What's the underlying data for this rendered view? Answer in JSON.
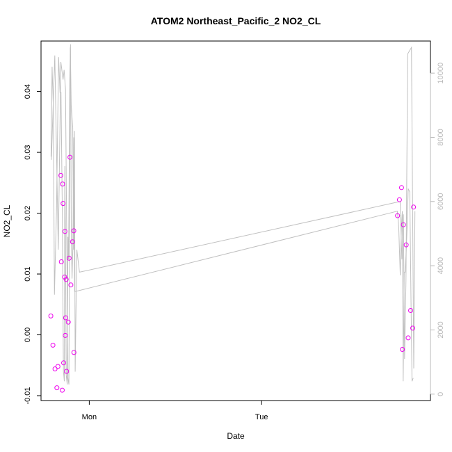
{
  "chart_data": {
    "type": "scatter",
    "title": "ATOM2 Northeast_Pacific_2 NO2_CL",
    "xlabel": "Date",
    "ylabel": "NO2_CL",
    "x_axis_type": "time",
    "x_ticks": [
      {
        "value": 1.0,
        "label": "Mon"
      },
      {
        "value": 2.0,
        "label": "Tue"
      }
    ],
    "y_ticks": [
      -0.01,
      0.0,
      0.01,
      0.02,
      0.03,
      0.04
    ],
    "y_tick_labels": [
      "-0.01",
      "0.00",
      "0.01",
      "0.02",
      "0.03",
      "0.04"
    ],
    "xlim": [
      0.72,
      2.98
    ],
    "ylim": [
      -0.0108,
      0.0483
    ],
    "y2_ticks": [
      0,
      2000,
      4000,
      6000,
      8000,
      10000
    ],
    "y2_tick_labels": [
      "0",
      "2000",
      "4000",
      "6000",
      "8000",
      "10000"
    ],
    "y2lim": [
      -200,
      11000
    ],
    "grid": false,
    "colors": {
      "points": "#ee00ee",
      "line": "#c0c0c0",
      "right_axis": "#b8b8b8"
    },
    "series": [
      {
        "kind": "points",
        "x": [
          0.777,
          0.789,
          0.801,
          0.812,
          0.818,
          0.835,
          0.838,
          0.843,
          0.845,
          0.848,
          0.851,
          0.857,
          0.859,
          0.861,
          0.863,
          0.866,
          0.868,
          0.878,
          0.883,
          0.888,
          0.893,
          0.903,
          0.911,
          0.91,
          2.789,
          2.8,
          2.812,
          2.817,
          2.823,
          2.839,
          2.851,
          2.865,
          2.877,
          2.882
        ],
        "y": [
          0.0031,
          -0.0017,
          -0.0056,
          -0.0087,
          -0.0052,
          0.0262,
          0.012,
          -0.0091,
          0.0248,
          0.0216,
          -0.0046,
          0.0095,
          0.017,
          -0.0001,
          0.0028,
          0.0091,
          -0.006,
          0.0021,
          0.0126,
          0.0292,
          0.0082,
          0.0153,
          -0.0029,
          0.0171,
          0.0196,
          0.0222,
          0.0242,
          -0.0024,
          0.0181,
          0.0148,
          -0.0005,
          0.004,
          0.0011,
          0.021
        ]
      },
      {
        "kind": "line",
        "axis": "right",
        "x": [
          0.78,
          0.8,
          0.82,
          0.835,
          0.848,
          0.854,
          0.862,
          0.876,
          0.882,
          0.89,
          0.895,
          0.904,
          0.909,
          0.914,
          0.918,
          0.928,
          0.943,
          2.804,
          2.814,
          2.823,
          2.83,
          2.838,
          2.848,
          2.87,
          2.883,
          2.89
        ],
        "y": [
          7300,
          10550,
          4500,
          10350,
          9800,
          10100,
          9500,
          500,
          300,
          10800,
          9000,
          8300,
          4500,
          8200,
          700,
          4500,
          3800,
          6000,
          4200,
          5600,
          1100,
          3500,
          10600,
          10800,
          800,
          5700
        ]
      },
      {
        "kind": "line",
        "axis": "right",
        "x": [
          0.778,
          0.784,
          0.791,
          0.798,
          0.81,
          0.822,
          0.83,
          0.836,
          0.844,
          0.85,
          0.852,
          0.855,
          0.858,
          0.862,
          0.866,
          0.872,
          0.876,
          0.88,
          0.887,
          0.891,
          0.896,
          0.9,
          0.905,
          0.91,
          0.915,
          0.92,
          2.788,
          2.796,
          2.805,
          2.812,
          2.817,
          2.822,
          2.828,
          2.833,
          2.838,
          2.845,
          2.851,
          2.86,
          2.867,
          2.873,
          2.88
        ],
        "y": [
          7400,
          10200,
          9000,
          3100,
          5800,
          10500,
          9400,
          9400,
          5500,
          700,
          600,
          400,
          7100,
          4900,
          600,
          300,
          4900,
          4200,
          9800,
          10900,
          4800,
          3600,
          4600,
          8000,
          3200,
          3200,
          5700,
          5200,
          3700,
          5300,
          5700,
          400,
          3800,
          3800,
          4300,
          5200,
          6400,
          6300,
          3000,
          400,
          500
        ]
      }
    ]
  }
}
